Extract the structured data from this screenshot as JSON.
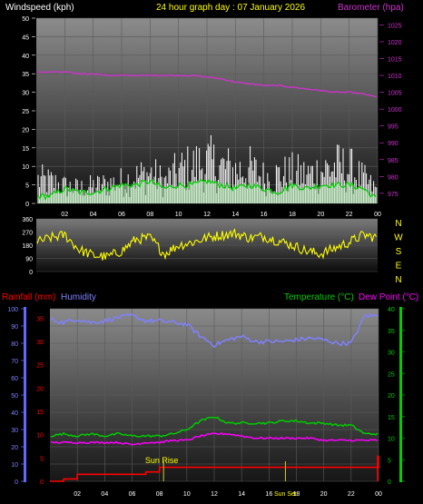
{
  "header": {
    "windspeed_label": "Windspeed (kph)",
    "title": "24 hour graph day : 07 January 2026",
    "barometer_label": "Barometer (hpa)"
  },
  "bottom_header": {
    "rainfall_label": "Rainfall (mm)",
    "humidity_label": "Humidity",
    "temperature_label": "Temperature (°C)",
    "dewpoint_label": "Dew Point (°C)"
  },
  "compass": {
    "labels": [
      "N",
      "W",
      "S",
      "E",
      "N"
    ]
  },
  "annotations": {
    "sunrise": "Sun Rise",
    "sunset": "Sun Set"
  },
  "colors": {
    "windspeed": "#ffffff",
    "windavg": "#00cc00",
    "barometer": "#cc33cc",
    "direction": "#ffff00",
    "rainfall": "#ff0000",
    "humidity": "#8080ff",
    "temperature": "#00cc00",
    "dewpoint": "#ff00ff",
    "title": "#ffff00"
  },
  "chart_data": [
    {
      "type": "line",
      "name": "wind-barometer",
      "x_ticks": [
        "02",
        "04",
        "06",
        "08",
        "10",
        "12",
        "14",
        "16",
        "18",
        "20",
        "22",
        "00"
      ],
      "y_left_ticks": [
        0,
        5,
        10,
        15,
        20,
        25,
        30,
        35,
        40,
        45,
        50
      ],
      "y_right_ticks": [
        975,
        980,
        985,
        990,
        995,
        1000,
        1005,
        1010,
        1015,
        1020,
        1025
      ],
      "ylim_left": [
        0,
        50
      ],
      "ylim_right": [
        972,
        1027
      ],
      "x_hours": [
        0,
        24
      ],
      "barometer": {
        "x": [
          0,
          1,
          2,
          3,
          4,
          5,
          6,
          7,
          8,
          9,
          10,
          11,
          12,
          13,
          14,
          15,
          16,
          17,
          18,
          19,
          20,
          21,
          22,
          23,
          24
        ],
        "values": [
          1011,
          1011,
          1011,
          1010.5,
          1010.5,
          1010,
          1010,
          1010,
          1010,
          1010,
          1010,
          1010,
          1009.5,
          1009,
          1008,
          1007.5,
          1007,
          1007,
          1006.5,
          1006,
          1005.5,
          1005,
          1005,
          1004.5,
          1003.5
        ]
      },
      "wind_gust_envelope": {
        "x": [
          0,
          1,
          2,
          3,
          4,
          5,
          6,
          7,
          8,
          9,
          10,
          11,
          12,
          13,
          14,
          15,
          16,
          17,
          18,
          19,
          20,
          21,
          22,
          23,
          24
        ],
        "values": [
          11,
          10,
          8,
          7,
          8,
          9,
          10,
          12,
          14,
          10,
          15,
          17,
          19,
          17,
          15,
          16,
          12,
          13,
          14,
          13,
          15,
          17,
          16,
          11,
          6
        ]
      },
      "wind_avg": {
        "x": [
          0,
          1,
          2,
          3,
          4,
          5,
          6,
          7,
          8,
          9,
          10,
          11,
          12,
          13,
          14,
          15,
          16,
          17,
          18,
          19,
          20,
          21,
          22,
          23,
          24
        ],
        "values": [
          2,
          2,
          4,
          3,
          3,
          4,
          5,
          5,
          6,
          4,
          5,
          5,
          6,
          5,
          4,
          5,
          4,
          3,
          5,
          4,
          5,
          5,
          5,
          4,
          1
        ]
      }
    },
    {
      "type": "line",
      "name": "wind-direction",
      "y_ticks": [
        0,
        90,
        180,
        270,
        360
      ],
      "ylim": [
        0,
        360
      ],
      "direction": {
        "x": [
          0,
          1,
          2,
          3,
          4,
          5,
          6,
          7,
          8,
          9,
          10,
          11,
          12,
          13,
          14,
          15,
          16,
          17,
          18,
          19,
          20,
          21,
          22,
          23,
          24
        ],
        "values": [
          200,
          230,
          250,
          150,
          110,
          100,
          140,
          220,
          230,
          120,
          180,
          200,
          230,
          250,
          260,
          230,
          240,
          210,
          180,
          140,
          120,
          160,
          200,
          250,
          230
        ]
      }
    },
    {
      "type": "line",
      "name": "rain-humidity-temperature",
      "y_left_ticks": [
        0,
        10,
        20,
        30,
        40,
        50,
        60,
        70,
        80,
        90,
        100
      ],
      "y_left_red_ticks": [
        0,
        5,
        10,
        15,
        20,
        25,
        30,
        35
      ],
      "y_right_ticks": [
        0,
        5,
        10,
        15,
        20,
        25,
        30,
        35,
        40
      ],
      "ylim_left": [
        0,
        100
      ],
      "ylim_right": [
        0,
        40
      ],
      "humidity": {
        "x": [
          0,
          1,
          2,
          3,
          4,
          5,
          6,
          7,
          8,
          9,
          10,
          11,
          12,
          13,
          14,
          15,
          16,
          17,
          18,
          19,
          20,
          21,
          22,
          23,
          24
        ],
        "values": [
          94,
          92,
          94,
          92,
          93,
          95,
          96,
          93,
          93,
          92,
          91,
          84,
          79,
          82,
          84,
          81,
          81,
          81,
          82,
          83,
          82,
          80,
          80,
          96,
          96
        ]
      },
      "temperature": {
        "x": [
          0,
          1,
          2,
          3,
          4,
          5,
          6,
          7,
          8,
          9,
          10,
          11,
          12,
          13,
          14,
          15,
          16,
          17,
          18,
          19,
          20,
          21,
          22,
          23,
          24
        ],
        "values": [
          10.5,
          11,
          10.5,
          11,
          10.5,
          11,
          10.5,
          10.5,
          10.5,
          11,
          12,
          14,
          15,
          13.5,
          13.5,
          13.5,
          13.5,
          14,
          14,
          13.5,
          13.5,
          13,
          13,
          11,
          11
        ]
      },
      "dewpoint": {
        "x": [
          0,
          1,
          2,
          3,
          4,
          5,
          6,
          7,
          8,
          9,
          10,
          11,
          12,
          13,
          14,
          15,
          16,
          17,
          18,
          19,
          20,
          21,
          22,
          23,
          24
        ],
        "values": [
          9,
          9,
          9,
          9,
          9,
          9,
          8.5,
          9,
          9,
          9.5,
          9.5,
          10.5,
          11,
          11,
          10.5,
          10,
          10,
          10,
          10,
          10,
          9.5,
          9.5,
          9.5,
          9.5,
          9.5
        ]
      },
      "rainfall": {
        "x": [
          0,
          1,
          2,
          3,
          4,
          5,
          6,
          7,
          8,
          9,
          10,
          11,
          12,
          13,
          14,
          15,
          16,
          17,
          18,
          19,
          20,
          21,
          22,
          23,
          24
        ],
        "values": [
          0,
          0.5,
          1.5,
          1.5,
          1.5,
          1.5,
          1.5,
          2,
          3,
          3,
          3,
          3,
          3,
          3,
          3,
          3,
          3,
          3,
          3,
          3,
          3,
          3,
          3,
          3,
          5.5
        ]
      },
      "sunrise_hour": 8.3,
      "sunset_hour": 17.2
    }
  ]
}
